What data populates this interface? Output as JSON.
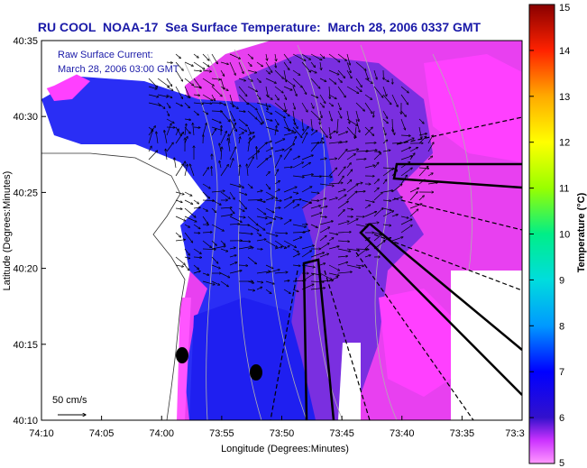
{
  "title": "RU COOL  NOAA-17  Sea Surface Temperature:  March 28, 2006 0337 GMT",
  "annotation": {
    "line1": "Raw Surface Current:",
    "line2": "March 28, 2006 03:00 GMT"
  },
  "scale_label": "50 cm/s",
  "axes": {
    "xlabel": "Longitude (Degrees:Minutes)",
    "ylabel": "Latitude (Degrees:Minutes)",
    "x_ticks": [
      "74:10",
      "74:05",
      "74:00",
      "73:55",
      "73:50",
      "73:45",
      "73:40",
      "73:35",
      "73:3"
    ],
    "y_ticks": [
      "40:35",
      "40:30",
      "40:25",
      "40:20",
      "40:15",
      "40:10"
    ]
  },
  "colorbar": {
    "label": "Temperature (°C)",
    "min": 5,
    "max": 15,
    "ticks": [
      "5",
      "6",
      "7",
      "8",
      "9",
      "10",
      "11",
      "12",
      "13",
      "14",
      "15"
    ]
  },
  "colors": {
    "title": "#1a1aa8",
    "land": "#ffffff",
    "sst_cold": "#ff33ff",
    "sst_mid": "#6a2bd9",
    "sst_warm": "#2030f0"
  }
}
